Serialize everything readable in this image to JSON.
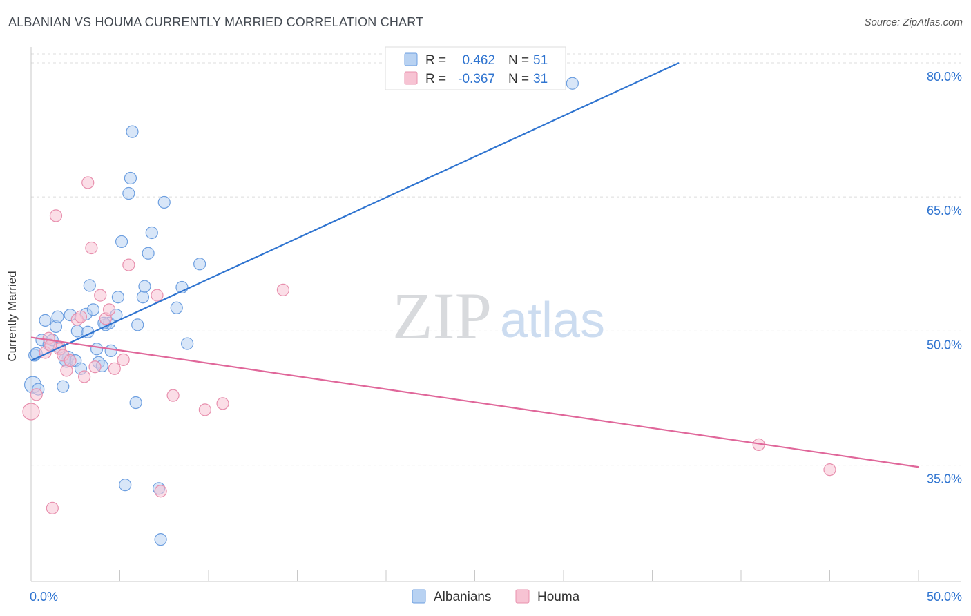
{
  "title": "ALBANIAN VS HOUMA CURRENTLY MARRIED CORRELATION CHART",
  "source": "Source: ZipAtlas.com",
  "watermark": {
    "zip": "ZIP",
    "atlas": "atlas"
  },
  "chart_data": {
    "type": "scatter",
    "ylabel": "Currently Married",
    "xlim": [
      0,
      50
    ],
    "ylim": [
      22,
      81
    ],
    "x_ticks": [
      "0.0%",
      "50.0%"
    ],
    "y_ticks": [
      {
        "value": 35,
        "label": "35.0%"
      },
      {
        "value": 50,
        "label": "50.0%"
      },
      {
        "value": 65,
        "label": "65.0%"
      },
      {
        "value": 80,
        "label": "80.0%"
      }
    ],
    "grid": true,
    "legend_position": "top-center",
    "colors": {
      "Albanians_fill": "#b8d2f2",
      "Albanians_stroke": "#6d9fe0",
      "Albanians_line": "#2f74d0",
      "Houma_fill": "#f7c3d3",
      "Houma_stroke": "#e890ae",
      "Houma_line": "#e0679a",
      "value_text": "#2f74d0"
    },
    "stats": [
      {
        "r_label": "R =",
        "r_value": "0.462",
        "n_label": "N =",
        "n_value": "51"
      },
      {
        "r_label": "R =",
        "r_value": "-0.367",
        "n_label": "N =",
        "n_value": "31"
      }
    ],
    "series": [
      {
        "name": "Albanians",
        "trend": {
          "x": [
            0,
            36.5
          ],
          "y": [
            46.7,
            80
          ]
        },
        "points": [
          [
            0.1,
            44.0
          ],
          [
            0.2,
            47.3
          ],
          [
            0.4,
            43.5
          ],
          [
            0.6,
            49.0
          ],
          [
            0.8,
            51.2
          ],
          [
            1.0,
            48.5
          ],
          [
            1.2,
            49.0
          ],
          [
            1.4,
            50.5
          ],
          [
            1.5,
            51.6
          ],
          [
            1.6,
            48.2
          ],
          [
            1.8,
            43.8
          ],
          [
            2.0,
            46.6
          ],
          [
            2.1,
            47.1
          ],
          [
            2.2,
            51.8
          ],
          [
            2.5,
            46.7
          ],
          [
            2.6,
            50.0
          ],
          [
            2.8,
            45.8
          ],
          [
            3.1,
            51.9
          ],
          [
            3.2,
            49.9
          ],
          [
            3.3,
            55.1
          ],
          [
            3.5,
            52.4
          ],
          [
            3.7,
            48.0
          ],
          [
            3.8,
            46.5
          ],
          [
            4.0,
            46.1
          ],
          [
            4.2,
            50.7
          ],
          [
            4.4,
            50.9
          ],
          [
            4.5,
            47.8
          ],
          [
            4.8,
            51.8
          ],
          [
            4.9,
            53.8
          ],
          [
            5.1,
            60.0
          ],
          [
            5.3,
            32.8
          ],
          [
            5.5,
            65.4
          ],
          [
            5.6,
            67.1
          ],
          [
            5.7,
            72.3
          ],
          [
            5.9,
            42.0
          ],
          [
            6.0,
            50.7
          ],
          [
            6.3,
            53.8
          ],
          [
            6.4,
            55.0
          ],
          [
            6.6,
            58.7
          ],
          [
            6.8,
            61.0
          ],
          [
            7.2,
            32.4
          ],
          [
            7.3,
            26.7
          ],
          [
            7.5,
            64.4
          ],
          [
            8.2,
            52.6
          ],
          [
            8.5,
            54.9
          ],
          [
            8.8,
            48.6
          ],
          [
            9.5,
            57.5
          ],
          [
            30.5,
            77.7
          ],
          [
            0.3,
            47.5
          ],
          [
            1.9,
            46.8
          ],
          [
            4.1,
            50.9
          ]
        ]
      },
      {
        "name": "Houma",
        "trend": {
          "x": [
            0,
            50
          ],
          "y": [
            49.3,
            34.8
          ]
        },
        "points": [
          [
            0.0,
            41.0
          ],
          [
            0.3,
            42.9
          ],
          [
            0.8,
            47.6
          ],
          [
            1.0,
            49.2
          ],
          [
            1.2,
            30.2
          ],
          [
            1.4,
            62.9
          ],
          [
            1.6,
            48.0
          ],
          [
            1.8,
            47.3
          ],
          [
            2.0,
            45.6
          ],
          [
            2.2,
            46.7
          ],
          [
            2.6,
            51.3
          ],
          [
            3.0,
            44.9
          ],
          [
            3.2,
            66.6
          ],
          [
            3.4,
            59.3
          ],
          [
            3.6,
            46.0
          ],
          [
            3.9,
            54.0
          ],
          [
            4.2,
            51.4
          ],
          [
            4.4,
            52.4
          ],
          [
            4.7,
            45.8
          ],
          [
            5.2,
            46.8
          ],
          [
            5.5,
            57.4
          ],
          [
            7.1,
            54.0
          ],
          [
            7.3,
            32.1
          ],
          [
            8.0,
            42.8
          ],
          [
            9.8,
            41.2
          ],
          [
            10.8,
            41.9
          ],
          [
            14.2,
            54.6
          ],
          [
            41.0,
            37.3
          ],
          [
            45.0,
            34.5
          ],
          [
            2.8,
            51.6
          ],
          [
            1.1,
            48.4
          ]
        ]
      }
    ],
    "legend": [
      "Albanians",
      "Houma"
    ]
  }
}
